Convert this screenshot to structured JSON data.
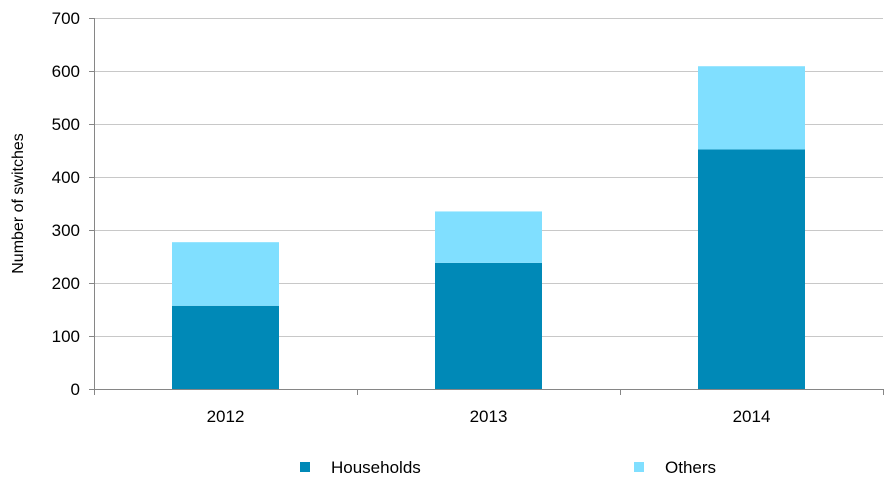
{
  "chart_data": {
    "type": "bar",
    "stacked": true,
    "categories": [
      "2012",
      "2013",
      "2014"
    ],
    "series": [
      {
        "name": "Households",
        "values": [
          157,
          238,
          452
        ],
        "color": "#0089b7"
      },
      {
        "name": "Others",
        "values": [
          120,
          97,
          157
        ],
        "color": "#80dfff"
      }
    ],
    "title": "",
    "xlabel": "",
    "ylabel": "Number of switches",
    "ylim": [
      0,
      700
    ],
    "yticks": [
      0,
      100,
      200,
      300,
      400,
      500,
      600,
      700
    ],
    "grid": true,
    "legend_position": "bottom"
  }
}
